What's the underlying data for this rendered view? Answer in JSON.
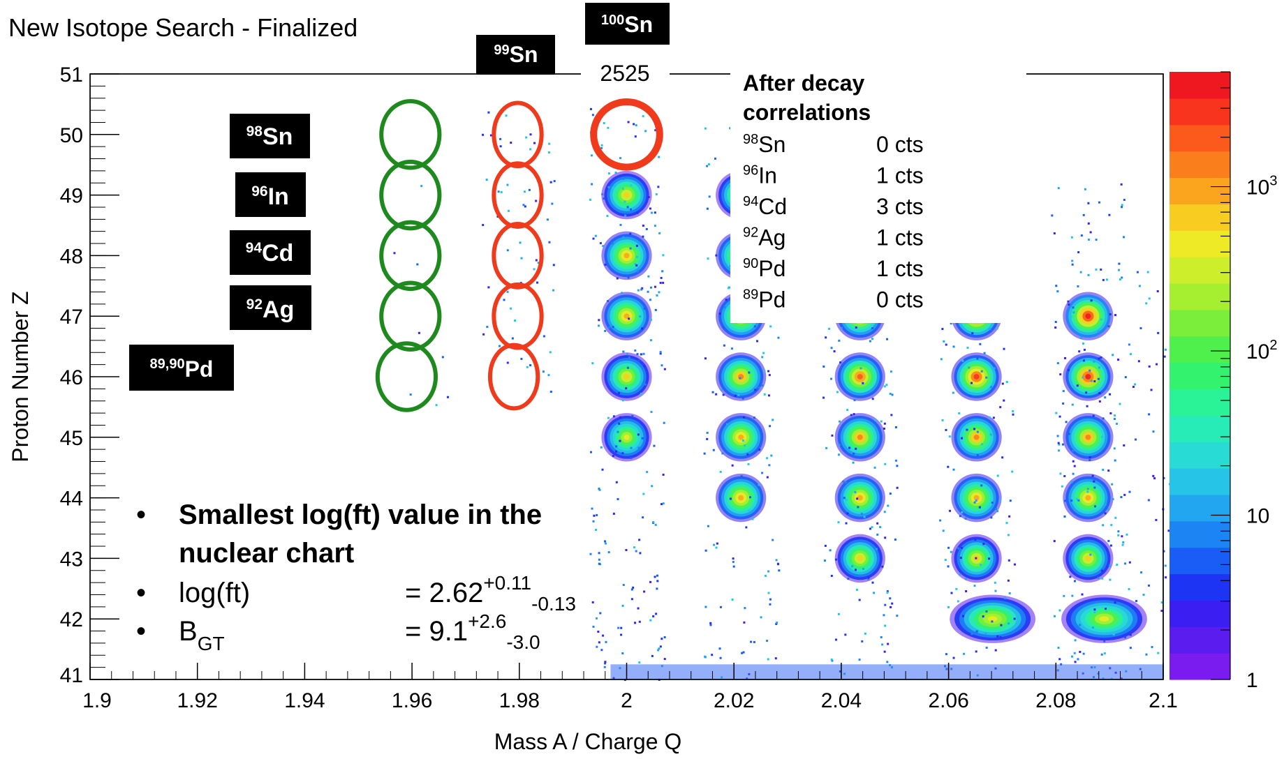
{
  "header": {
    "title": "New Isotope Search - Finalized"
  },
  "chart_data": {
    "type": "heatmap",
    "xlabel": "Mass A / Charge Q",
    "ylabel": "Proton Number Z",
    "xlim": [
      1.9,
      2.1
    ],
    "ylim": [
      41,
      51
    ],
    "x_ticks": [
      "1.9",
      "1.92",
      "1.94",
      "1.96",
      "1.98",
      "2",
      "2.02",
      "2.04",
      "2.06",
      "2.08",
      "2.1"
    ],
    "y_ticks": [
      "41",
      "42",
      "43",
      "44",
      "45",
      "46",
      "47",
      "48",
      "49",
      "50",
      "51"
    ],
    "z_scale": "log",
    "colorbar": {
      "range": [
        1,
        5000
      ],
      "ticks": [
        {
          "value": 1,
          "label": "1"
        },
        {
          "value": 10,
          "label": "10"
        },
        {
          "value": 100,
          "base": "10",
          "exp": "2"
        },
        {
          "value": 1000,
          "base": "10",
          "exp": "3"
        }
      ],
      "colors": [
        "#7a1cf0",
        "#5b1cf0",
        "#3a1ef2",
        "#1e34f5",
        "#1a5cf6",
        "#1d84f4",
        "#22a6ef",
        "#26c4e6",
        "#28dbd5",
        "#28ecb8",
        "#2af296",
        "#32f26e",
        "#4ff04c",
        "#7aee3a",
        "#a6ef30",
        "#cdee2a",
        "#eeea26",
        "#f9cc22",
        "#fba51e",
        "#fb7e1c",
        "#fb5a1c",
        "#f8341e",
        "#f01820"
      ]
    },
    "clusters": [
      {
        "x": 2.0,
        "z": 49,
        "counts": 700
      },
      {
        "x": 2.0,
        "z": 48,
        "counts": 900
      },
      {
        "x": 2.0,
        "z": 47,
        "counts": 800
      },
      {
        "x": 2.0,
        "z": 46,
        "counts": 700
      },
      {
        "x": 2.0,
        "z": 45,
        "counts": 400
      },
      {
        "x": 2.0213,
        "z": 49,
        "counts": 700
      },
      {
        "x": 2.0213,
        "z": 48,
        "counts": 900
      },
      {
        "x": 2.0213,
        "z": 47,
        "counts": 1200
      },
      {
        "x": 2.0213,
        "z": 46,
        "counts": 1200
      },
      {
        "x": 2.0213,
        "z": 45,
        "counts": 1000
      },
      {
        "x": 2.0213,
        "z": 44,
        "counts": 900
      },
      {
        "x": 2.0435,
        "z": 47,
        "counts": 1500
      },
      {
        "x": 2.0435,
        "z": 46,
        "counts": 2000
      },
      {
        "x": 2.0435,
        "z": 45,
        "counts": 1200
      },
      {
        "x": 2.0435,
        "z": 44,
        "counts": 900
      },
      {
        "x": 2.0435,
        "z": 43,
        "counts": 700
      },
      {
        "x": 2.0652,
        "z": 47,
        "counts": 3500
      },
      {
        "x": 2.0652,
        "z": 46,
        "counts": 3000
      },
      {
        "x": 2.0652,
        "z": 45,
        "counts": 1200
      },
      {
        "x": 2.0652,
        "z": 44,
        "counts": 900
      },
      {
        "x": 2.0652,
        "z": 43,
        "counts": 700
      },
      {
        "x": 2.0682,
        "z": 42,
        "counts": 500
      },
      {
        "x": 2.086,
        "z": 47,
        "counts": 5000
      },
      {
        "x": 2.086,
        "z": 46,
        "counts": 3500
      },
      {
        "x": 2.086,
        "z": 45,
        "counts": 1200
      },
      {
        "x": 2.086,
        "z": 44,
        "counts": 900
      },
      {
        "x": 2.086,
        "z": 43,
        "counts": 700
      },
      {
        "x": 2.089,
        "z": 42,
        "counts": 400
      }
    ],
    "green_circles": [
      {
        "x": 1.9597,
        "z": 50
      },
      {
        "x": 1.9597,
        "z": 49
      },
      {
        "x": 1.9597,
        "z": 48
      },
      {
        "x": 1.9597,
        "z": 47
      },
      {
        "x": 1.959,
        "z": 46
      }
    ],
    "red_circles": [
      {
        "x": 1.9797,
        "z": 50
      },
      {
        "x": 1.9797,
        "z": 49
      },
      {
        "x": 1.9797,
        "z": 48
      },
      {
        "x": 1.9797,
        "z": 47
      },
      {
        "x": 1.979,
        "z": 46
      }
    ],
    "red_circle_100sn": {
      "x": 2.0,
      "z": 50
    }
  },
  "isotope_labels": [
    {
      "id": "98Sn",
      "mass": "98",
      "element": "Sn"
    },
    {
      "id": "96In",
      "mass": "96",
      "element": "In"
    },
    {
      "id": "94Cd",
      "mass": "94",
      "element": "Cd"
    },
    {
      "id": "92Ag",
      "mass": "92",
      "element": "Ag"
    },
    {
      "id": "89,90Pd",
      "mass": "89,90",
      "element": "Pd"
    },
    {
      "id": "99Sn",
      "mass": "99",
      "element": "Sn"
    },
    {
      "id": "100Sn",
      "mass": "100",
      "element": "Sn"
    }
  ],
  "count_label": "2525",
  "decay_box": {
    "title_line1": "After decay",
    "title_line2": "correlations",
    "rows": [
      {
        "mass": "98",
        "element": "Sn",
        "count": "0 cts"
      },
      {
        "mass": "96",
        "element": "In",
        "count": "1 cts"
      },
      {
        "mass": "94",
        "element": "Cd",
        "count": "3 cts"
      },
      {
        "mass": "92",
        "element": "Ag",
        "count": "1 cts"
      },
      {
        "mass": "90",
        "element": "Pd",
        "count": "1 cts"
      },
      {
        "mass": "89",
        "element": "Pd",
        "count": "0 cts"
      }
    ]
  },
  "bullets": {
    "b1_line1": "Smallest log(ft) value in the",
    "b1_line2": "nuclear chart",
    "b2_label": "log(ft)",
    "b2_eq": "= 2.62",
    "b2_sup": "+0.11",
    "b2_sub": "-0.13",
    "b3_label": "B",
    "b3_label_sub": "GT",
    "b3_eq": "= 9.1",
    "b3_sup": "+2.6",
    "b3_sub": "-3.0"
  }
}
